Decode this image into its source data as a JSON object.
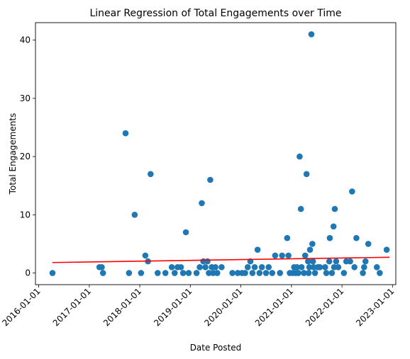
{
  "chart_data": {
    "type": "scatter",
    "title": "Linear Regression of Total Engagements over Time",
    "xlabel": "Date Posted",
    "ylabel": "Total Engagements",
    "xlim": [
      "2015-12-09",
      "2023-01-25"
    ],
    "ylim": [
      -2,
      43
    ],
    "x_tick_labels": [
      "2016-01-01",
      "2017-01-01",
      "2018-01-01",
      "2019-01-01",
      "2020-01-01",
      "2021-01-01",
      "2022-01-01",
      "2023-01-01"
    ],
    "y_ticks": [
      0,
      10,
      20,
      30,
      40
    ],
    "grid": false,
    "legend": "none",
    "colors": {
      "points": "#1f77b4",
      "regression": "#ff0000"
    },
    "regression_line": {
      "x": [
        "2016-04-10",
        "2022-12-10"
      ],
      "y": [
        1.8,
        2.7
      ]
    },
    "points": [
      {
        "x": "2016-04-10",
        "y": 0
      },
      {
        "x": "2017-03-15",
        "y": 1
      },
      {
        "x": "2017-04-01",
        "y": 1
      },
      {
        "x": "2017-04-10",
        "y": 0
      },
      {
        "x": "2017-09-20",
        "y": 24
      },
      {
        "x": "2017-10-15",
        "y": 0
      },
      {
        "x": "2017-11-25",
        "y": 10
      },
      {
        "x": "2018-01-10",
        "y": 0
      },
      {
        "x": "2018-02-10",
        "y": 3
      },
      {
        "x": "2018-03-01",
        "y": 2
      },
      {
        "x": "2018-03-20",
        "y": 17
      },
      {
        "x": "2018-05-10",
        "y": 0
      },
      {
        "x": "2018-07-05",
        "y": 0
      },
      {
        "x": "2018-08-20",
        "y": 1
      },
      {
        "x": "2018-09-10",
        "y": 0
      },
      {
        "x": "2018-10-01",
        "y": 1
      },
      {
        "x": "2018-10-25",
        "y": 1
      },
      {
        "x": "2018-11-10",
        "y": 0
      },
      {
        "x": "2018-11-30",
        "y": 7
      },
      {
        "x": "2018-12-20",
        "y": 0
      },
      {
        "x": "2019-02-15",
        "y": 0
      },
      {
        "x": "2019-03-10",
        "y": 1
      },
      {
        "x": "2019-03-25",
        "y": 12
      },
      {
        "x": "2019-04-05",
        "y": 2
      },
      {
        "x": "2019-04-20",
        "y": 1
      },
      {
        "x": "2019-05-05",
        "y": 2
      },
      {
        "x": "2019-05-15",
        "y": 0
      },
      {
        "x": "2019-05-25",
        "y": 16
      },
      {
        "x": "2019-06-05",
        "y": 1
      },
      {
        "x": "2019-06-15",
        "y": 0
      },
      {
        "x": "2019-07-01",
        "y": 1
      },
      {
        "x": "2019-07-15",
        "y": 0
      },
      {
        "x": "2019-08-15",
        "y": 1
      },
      {
        "x": "2019-11-01",
        "y": 0
      },
      {
        "x": "2019-12-10",
        "y": 0
      },
      {
        "x": "2020-01-10",
        "y": 0
      },
      {
        "x": "2020-02-01",
        "y": 0
      },
      {
        "x": "2020-02-20",
        "y": 1
      },
      {
        "x": "2020-03-10",
        "y": 2
      },
      {
        "x": "2020-03-25",
        "y": 0
      },
      {
        "x": "2020-04-10",
        "y": 1
      },
      {
        "x": "2020-05-01",
        "y": 4
      },
      {
        "x": "2020-05-15",
        "y": 0
      },
      {
        "x": "2020-06-01",
        "y": 1
      },
      {
        "x": "2020-07-01",
        "y": 0
      },
      {
        "x": "2020-07-20",
        "y": 1
      },
      {
        "x": "2020-08-15",
        "y": 0
      },
      {
        "x": "2020-09-05",
        "y": 3
      },
      {
        "x": "2020-10-10",
        "y": 0
      },
      {
        "x": "2020-10-25",
        "y": 3
      },
      {
        "x": "2020-12-01",
        "y": 6
      },
      {
        "x": "2020-12-10",
        "y": 3
      },
      {
        "x": "2020-12-20",
        "y": 0
      },
      {
        "x": "2021-01-10",
        "y": 0
      },
      {
        "x": "2021-01-20",
        "y": 1
      },
      {
        "x": "2021-02-01",
        "y": 0
      },
      {
        "x": "2021-02-10",
        "y": 1
      },
      {
        "x": "2021-02-20",
        "y": 0
      },
      {
        "x": "2021-03-01",
        "y": 20
      },
      {
        "x": "2021-03-10",
        "y": 11
      },
      {
        "x": "2021-03-15",
        "y": 1
      },
      {
        "x": "2021-04-01",
        "y": 0
      },
      {
        "x": "2021-04-10",
        "y": 3
      },
      {
        "x": "2021-04-20",
        "y": 17
      },
      {
        "x": "2021-05-01",
        "y": 2
      },
      {
        "x": "2021-05-05",
        "y": 0
      },
      {
        "x": "2021-05-10",
        "y": 1
      },
      {
        "x": "2021-05-15",
        "y": 4
      },
      {
        "x": "2021-05-25",
        "y": 41
      },
      {
        "x": "2021-06-01",
        "y": 5
      },
      {
        "x": "2021-06-05",
        "y": 2
      },
      {
        "x": "2021-06-10",
        "y": 1
      },
      {
        "x": "2021-06-20",
        "y": 0
      },
      {
        "x": "2021-07-10",
        "y": 1
      },
      {
        "x": "2021-07-25",
        "y": 1
      },
      {
        "x": "2021-09-01",
        "y": 1
      },
      {
        "x": "2021-09-10",
        "y": 0
      },
      {
        "x": "2021-10-01",
        "y": 2
      },
      {
        "x": "2021-10-05",
        "y": 6
      },
      {
        "x": "2021-10-20",
        "y": 0
      },
      {
        "x": "2021-11-01",
        "y": 8
      },
      {
        "x": "2021-11-05",
        "y": 1
      },
      {
        "x": "2021-11-10",
        "y": 11
      },
      {
        "x": "2021-11-20",
        "y": 2
      },
      {
        "x": "2021-12-05",
        "y": 1
      },
      {
        "x": "2022-01-15",
        "y": 0
      },
      {
        "x": "2022-02-01",
        "y": 2
      },
      {
        "x": "2022-03-01",
        "y": 2
      },
      {
        "x": "2022-03-15",
        "y": 14
      },
      {
        "x": "2022-04-01",
        "y": 1
      },
      {
        "x": "2022-04-15",
        "y": 6
      },
      {
        "x": "2022-06-01",
        "y": 0
      },
      {
        "x": "2022-06-10",
        "y": 1
      },
      {
        "x": "2022-06-20",
        "y": 2
      },
      {
        "x": "2022-07-10",
        "y": 5
      },
      {
        "x": "2022-09-10",
        "y": 1
      },
      {
        "x": "2022-10-01",
        "y": 0
      },
      {
        "x": "2022-11-20",
        "y": 4
      }
    ]
  }
}
